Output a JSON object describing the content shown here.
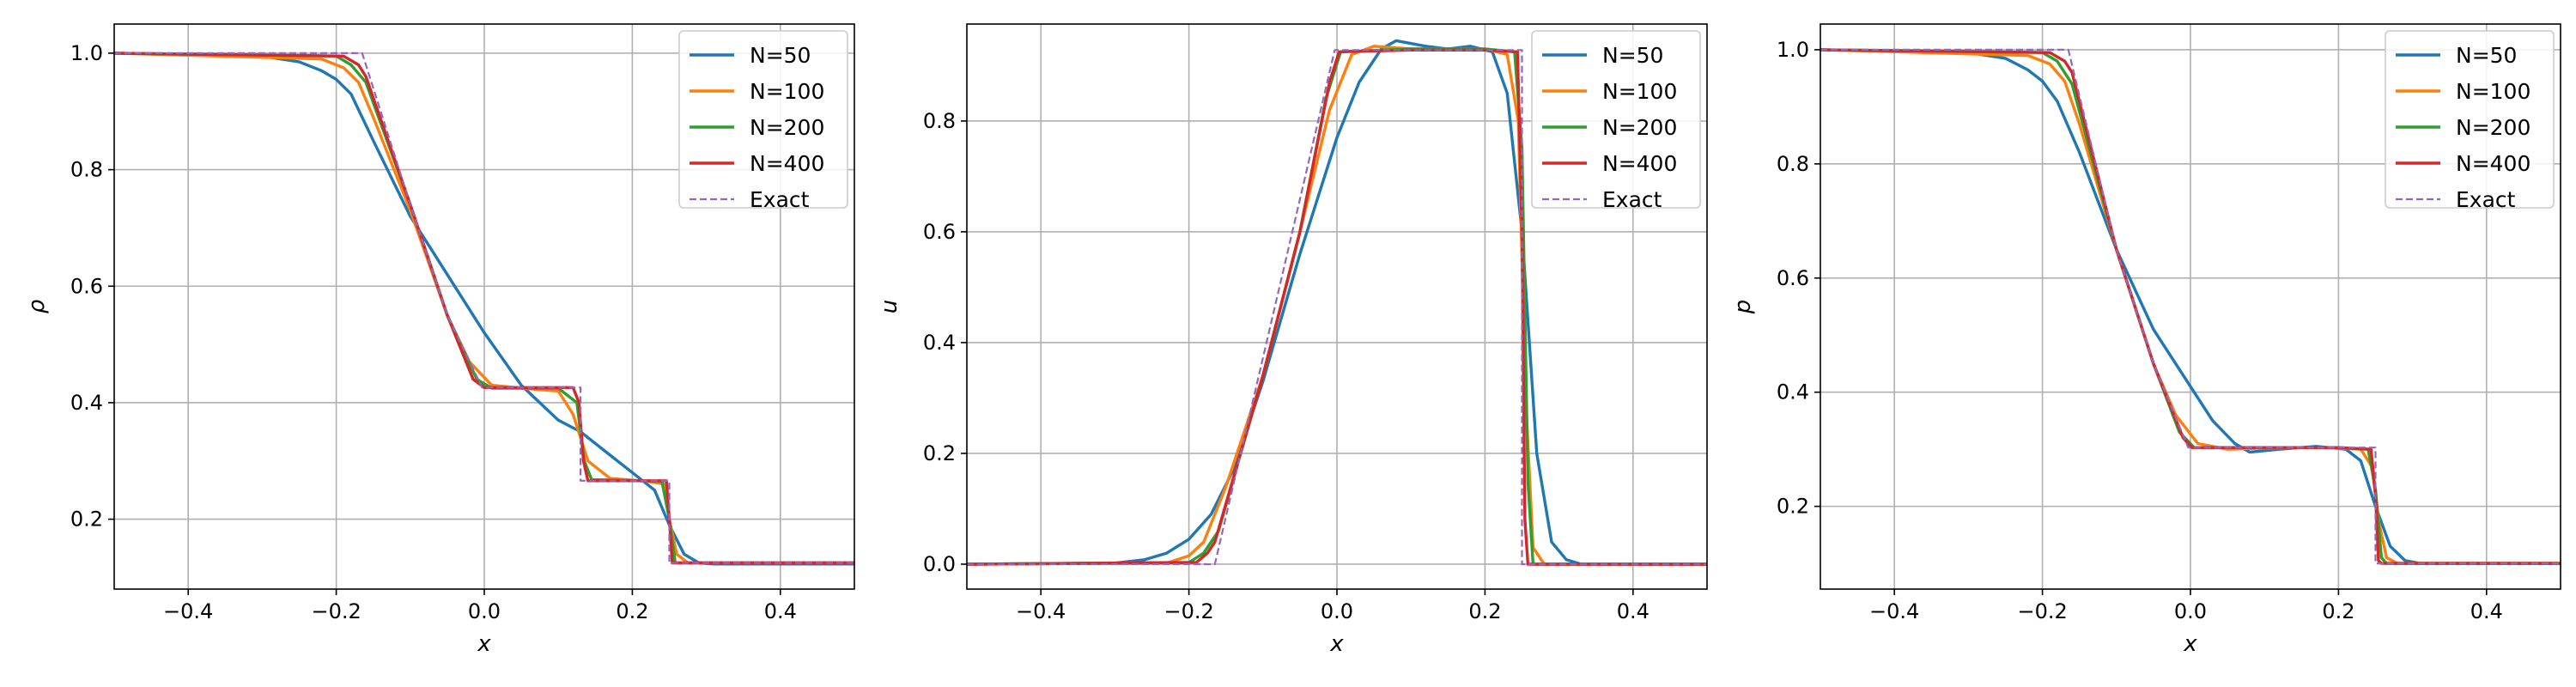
{
  "colors": {
    "N50": "#1f77b4",
    "N100": "#ff7f0e",
    "N200": "#2ca02c",
    "N400": "#d62728",
    "exact": "#9467bd",
    "grid": "#b0b0b0"
  },
  "chart_data": [
    {
      "type": "line",
      "xlabel": "x",
      "ylabel": "ρ",
      "xlim": [
        -0.5,
        0.5
      ],
      "ylim": [
        0.08,
        1.05
      ],
      "xticks": [
        -0.4,
        -0.2,
        0.0,
        0.2,
        0.4
      ],
      "xtick_labels": [
        "−0.4",
        "−0.2",
        "0.0",
        "0.2",
        "0.4"
      ],
      "yticks": [
        0.2,
        0.4,
        0.6,
        0.8,
        1.0
      ],
      "ytick_labels": [
        "0.2",
        "0.4",
        "0.6",
        "0.8",
        "1.0"
      ],
      "grid": true,
      "legend_position": "top-right",
      "series": [
        {
          "name": "N=50",
          "color": "#1f77b4",
          "dashed": false,
          "x": [
            -0.5,
            -0.3,
            -0.25,
            -0.22,
            -0.2,
            -0.18,
            -0.15,
            -0.1,
            -0.05,
            0.0,
            0.05,
            0.1,
            0.13,
            0.17,
            0.2,
            0.23,
            0.25,
            0.27,
            0.29,
            0.31,
            0.5
          ],
          "y": [
            1.0,
            0.995,
            0.985,
            0.97,
            0.955,
            0.93,
            0.85,
            0.72,
            0.62,
            0.52,
            0.43,
            0.37,
            0.35,
            0.31,
            0.28,
            0.25,
            0.19,
            0.14,
            0.125,
            0.123,
            0.123
          ]
        },
        {
          "name": "N=100",
          "color": "#ff7f0e",
          "dashed": false,
          "x": [
            -0.5,
            -0.22,
            -0.19,
            -0.17,
            -0.15,
            -0.1,
            -0.05,
            -0.02,
            0.01,
            0.05,
            0.1,
            0.12,
            0.14,
            0.17,
            0.22,
            0.245,
            0.25,
            0.26,
            0.275,
            0.5
          ],
          "y": [
            1.0,
            0.99,
            0.975,
            0.95,
            0.89,
            0.73,
            0.55,
            0.47,
            0.43,
            0.425,
            0.42,
            0.38,
            0.3,
            0.27,
            0.265,
            0.26,
            0.2,
            0.14,
            0.125,
            0.125
          ]
        },
        {
          "name": "N=200",
          "color": "#2ca02c",
          "dashed": false,
          "x": [
            -0.5,
            -0.2,
            -0.18,
            -0.16,
            -0.1,
            -0.05,
            -0.01,
            0.01,
            0.1,
            0.125,
            0.135,
            0.145,
            0.24,
            0.25,
            0.258,
            0.5
          ],
          "y": [
            1.0,
            0.995,
            0.98,
            0.95,
            0.74,
            0.55,
            0.44,
            0.425,
            0.425,
            0.4,
            0.3,
            0.268,
            0.265,
            0.2,
            0.125,
            0.125
          ]
        },
        {
          "name": "N=400",
          "color": "#d62728",
          "dashed": false,
          "x": [
            -0.5,
            -0.19,
            -0.17,
            -0.16,
            -0.1,
            -0.05,
            -0.015,
            0.0,
            0.12,
            0.128,
            0.134,
            0.14,
            0.246,
            0.25,
            0.254,
            0.5
          ],
          "y": [
            1.0,
            0.995,
            0.98,
            0.96,
            0.74,
            0.55,
            0.44,
            0.426,
            0.426,
            0.4,
            0.3,
            0.266,
            0.266,
            0.2,
            0.125,
            0.125
          ]
        },
        {
          "name": "Exact",
          "color": "#9467bd",
          "dashed": true,
          "x": [
            -0.5,
            -0.165,
            -0.1,
            -0.05,
            -0.003,
            0.13,
            0.13,
            0.25,
            0.25,
            0.5
          ],
          "y": [
            1.0,
            1.0,
            0.74,
            0.55,
            0.426,
            0.426,
            0.266,
            0.266,
            0.125,
            0.125
          ]
        }
      ]
    },
    {
      "type": "line",
      "xlabel": "x",
      "ylabel": "u",
      "xlim": [
        -0.5,
        0.5
      ],
      "ylim": [
        -0.045,
        0.975
      ],
      "xticks": [
        -0.4,
        -0.2,
        0.0,
        0.2,
        0.4
      ],
      "xtick_labels": [
        "−0.4",
        "−0.2",
        "0.0",
        "0.2",
        "0.4"
      ],
      "yticks": [
        0.0,
        0.2,
        0.4,
        0.6,
        0.8
      ],
      "ytick_labels": [
        "0.0",
        "0.2",
        "0.4",
        "0.6",
        "0.8"
      ],
      "grid": true,
      "legend_position": "top-right",
      "series": [
        {
          "name": "N=50",
          "color": "#1f77b4",
          "dashed": false,
          "x": [
            -0.5,
            -0.3,
            -0.26,
            -0.23,
            -0.2,
            -0.17,
            -0.14,
            -0.1,
            -0.05,
            0.0,
            0.03,
            0.06,
            0.08,
            0.12,
            0.15,
            0.18,
            0.21,
            0.23,
            0.25,
            0.27,
            0.29,
            0.31,
            0.33,
            0.5
          ],
          "y": [
            0.0,
            0.002,
            0.008,
            0.02,
            0.045,
            0.09,
            0.17,
            0.33,
            0.56,
            0.77,
            0.87,
            0.93,
            0.945,
            0.935,
            0.93,
            0.935,
            0.925,
            0.85,
            0.6,
            0.2,
            0.04,
            0.008,
            0.0,
            0.0
          ]
        },
        {
          "name": "N=100",
          "color": "#ff7f0e",
          "dashed": false,
          "x": [
            -0.5,
            -0.23,
            -0.2,
            -0.18,
            -0.15,
            -0.1,
            -0.05,
            -0.01,
            0.02,
            0.05,
            0.1,
            0.15,
            0.2,
            0.23,
            0.245,
            0.255,
            0.265,
            0.28,
            0.5
          ],
          "y": [
            0.0,
            0.002,
            0.015,
            0.04,
            0.14,
            0.34,
            0.6,
            0.82,
            0.92,
            0.935,
            0.93,
            0.93,
            0.93,
            0.92,
            0.8,
            0.3,
            0.03,
            0.0,
            0.0
          ]
        },
        {
          "name": "N=200",
          "color": "#2ca02c",
          "dashed": false,
          "x": [
            -0.5,
            -0.2,
            -0.18,
            -0.16,
            -0.1,
            -0.05,
            -0.015,
            0.005,
            0.1,
            0.2,
            0.24,
            0.25,
            0.258,
            0.265,
            0.5
          ],
          "y": [
            0.0,
            0.003,
            0.02,
            0.06,
            0.34,
            0.6,
            0.84,
            0.925,
            0.93,
            0.93,
            0.925,
            0.75,
            0.15,
            0.0,
            0.0
          ]
        },
        {
          "name": "N=400",
          "color": "#d62728",
          "dashed": false,
          "x": [
            -0.5,
            -0.19,
            -0.175,
            -0.165,
            -0.1,
            -0.05,
            -0.01,
            0.003,
            0.1,
            0.2,
            0.244,
            0.25,
            0.254,
            0.258,
            0.5
          ],
          "y": [
            0.0,
            0.003,
            0.02,
            0.04,
            0.34,
            0.6,
            0.87,
            0.925,
            0.928,
            0.928,
            0.925,
            0.6,
            0.08,
            0.0,
            0.0
          ]
        },
        {
          "name": "Exact",
          "color": "#9467bd",
          "dashed": true,
          "x": [
            -0.5,
            -0.165,
            -0.003,
            0.25,
            0.25,
            0.5
          ],
          "y": [
            0.0,
            0.0,
            0.928,
            0.928,
            0.0,
            0.0
          ]
        }
      ]
    },
    {
      "type": "line",
      "xlabel": "x",
      "ylabel": "p",
      "xlim": [
        -0.5,
        0.5
      ],
      "ylim": [
        0.055,
        1.045
      ],
      "xticks": [
        -0.4,
        -0.2,
        0.0,
        0.2,
        0.4
      ],
      "xtick_labels": [
        "−0.4",
        "−0.2",
        "0.0",
        "0.2",
        "0.4"
      ],
      "yticks": [
        0.2,
        0.4,
        0.6,
        0.8,
        1.0
      ],
      "ytick_labels": [
        "0.2",
        "0.4",
        "0.6",
        "0.8",
        "1.0"
      ],
      "grid": true,
      "legend_position": "top-right",
      "series": [
        {
          "name": "N=50",
          "color": "#1f77b4",
          "dashed": false,
          "x": [
            -0.5,
            -0.3,
            -0.25,
            -0.22,
            -0.2,
            -0.18,
            -0.15,
            -0.1,
            -0.05,
            0.0,
            0.03,
            0.06,
            0.08,
            0.12,
            0.17,
            0.21,
            0.23,
            0.25,
            0.27,
            0.29,
            0.31,
            0.5
          ],
          "y": [
            1.0,
            0.995,
            0.985,
            0.965,
            0.945,
            0.91,
            0.82,
            0.65,
            0.51,
            0.41,
            0.35,
            0.31,
            0.295,
            0.3,
            0.305,
            0.3,
            0.28,
            0.2,
            0.13,
            0.105,
            0.1,
            0.1
          ]
        },
        {
          "name": "N=100",
          "color": "#ff7f0e",
          "dashed": false,
          "x": [
            -0.5,
            -0.22,
            -0.19,
            -0.17,
            -0.15,
            -0.1,
            -0.05,
            -0.02,
            0.01,
            0.05,
            0.1,
            0.15,
            0.2,
            0.23,
            0.245,
            0.255,
            0.265,
            0.28,
            0.5
          ],
          "y": [
            1.0,
            0.99,
            0.975,
            0.945,
            0.87,
            0.65,
            0.45,
            0.36,
            0.31,
            0.3,
            0.302,
            0.303,
            0.302,
            0.3,
            0.27,
            0.17,
            0.11,
            0.1,
            0.1
          ]
        },
        {
          "name": "N=200",
          "color": "#2ca02c",
          "dashed": false,
          "x": [
            -0.5,
            -0.2,
            -0.18,
            -0.16,
            -0.1,
            -0.05,
            -0.015,
            0.005,
            0.1,
            0.2,
            0.24,
            0.25,
            0.258,
            0.265,
            0.5
          ],
          "y": [
            1.0,
            0.995,
            0.98,
            0.94,
            0.65,
            0.45,
            0.33,
            0.303,
            0.303,
            0.303,
            0.3,
            0.23,
            0.11,
            0.1,
            0.1
          ]
        },
        {
          "name": "N=400",
          "color": "#d62728",
          "dashed": false,
          "x": [
            -0.5,
            -0.19,
            -0.17,
            -0.16,
            -0.1,
            -0.05,
            -0.01,
            0.002,
            0.1,
            0.2,
            0.244,
            0.25,
            0.254,
            0.258,
            0.5
          ],
          "y": [
            1.0,
            0.995,
            0.98,
            0.96,
            0.65,
            0.45,
            0.32,
            0.303,
            0.303,
            0.303,
            0.3,
            0.22,
            0.105,
            0.1,
            0.1
          ]
        },
        {
          "name": "Exact",
          "color": "#9467bd",
          "dashed": true,
          "x": [
            -0.5,
            -0.165,
            -0.1,
            -0.05,
            -0.003,
            0.25,
            0.25,
            0.5
          ],
          "y": [
            1.0,
            1.0,
            0.65,
            0.45,
            0.303,
            0.303,
            0.1,
            0.1
          ]
        }
      ]
    }
  ]
}
